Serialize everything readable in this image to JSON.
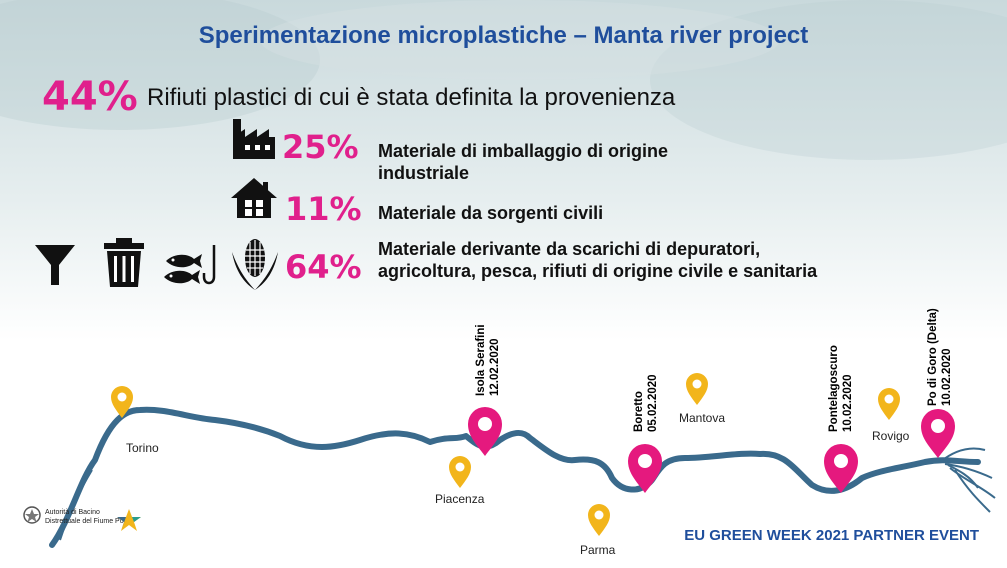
{
  "title": "Sperimentazione microplastiche – Manta river project",
  "headline": {
    "percent": "44%",
    "text": "Rifiuti plastici di cui è stata definita la provenienza"
  },
  "items": [
    {
      "percent": "25%",
      "text": "Materiale di imballaggio di origine industriale",
      "icons": [
        "factory-icon"
      ]
    },
    {
      "percent": "11%",
      "text": "Materiale da sorgenti civili",
      "icons": [
        "house-icon"
      ]
    },
    {
      "percent": "64%",
      "text": "Materiale derivante da scarichi di depuratori, agricoltura, pesca, rifiuti di origine civile e sanitaria",
      "icons": [
        "funnel-icon",
        "trash-bin-icon",
        "fish-hook-icon",
        "corn-icon"
      ]
    }
  ],
  "map": {
    "cities": [
      "Torino",
      "Piacenza",
      "Parma",
      "Mantova",
      "Rovigo"
    ],
    "sampling_sites": [
      {
        "name": "Isola Serafini",
        "date": "12.02.2020"
      },
      {
        "name": "Boretto",
        "date": "05.02.2020"
      },
      {
        "name": "Pontelagoscuro",
        "date": "10.02.2020"
      },
      {
        "name": "Po di Goro (Delta)",
        "date": "10.02.2020"
      }
    ],
    "colors": {
      "river": "#3a6a8c",
      "city_pin": "#f2b51b",
      "site_pin": "#e5197e"
    }
  },
  "logo": {
    "line1": "Autorità di Bacino",
    "line2": "Distrettuale del Fiume Po"
  },
  "footer": "EU GREEN WEEK 2021 PARTNER EVENT"
}
